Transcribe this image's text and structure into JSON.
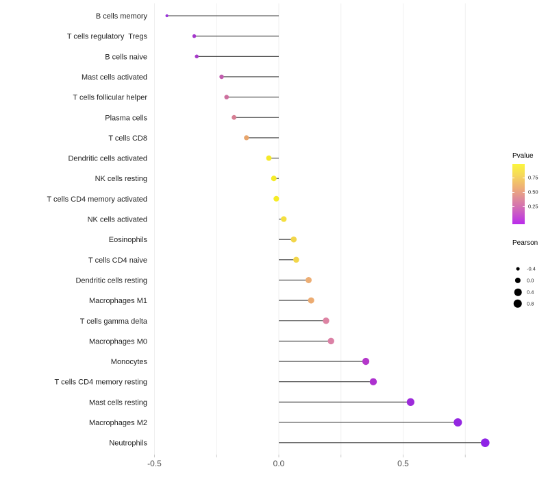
{
  "chart_data": {
    "type": "lollipop",
    "orientation": "horizontal",
    "title": "",
    "xlabel": "",
    "ylabel": "",
    "x_axis": {
      "range": [
        -0.51,
        0.88
      ],
      "major_tick_labels": [
        "-0.5",
        "0.0",
        "0.5"
      ],
      "major_ticks": [
        -0.5,
        0.0,
        0.5
      ],
      "gridlines": [
        -0.5,
        -0.25,
        0.0,
        0.25,
        0.5,
        0.75
      ],
      "baseline": 0.0
    },
    "size_scale": {
      "name": "Pearson",
      "domain": [
        -0.45,
        0.83
      ]
    },
    "color_scale": {
      "name": "Pvalue",
      "low_color": "#ba2bec",
      "high_color": "#fbf63c",
      "domain": [
        0,
        1
      ]
    },
    "points": [
      {
        "label": "B cells memory",
        "pearson": -0.45,
        "color": "#9a34d9"
      },
      {
        "label": "T cells regulatory  Tregs",
        "pearson": -0.34,
        "color": "#a437cc"
      },
      {
        "label": "B cells naive",
        "pearson": -0.33,
        "color": "#a73ac9"
      },
      {
        "label": "Mast cells activated",
        "pearson": -0.23,
        "color": "#c15cae"
      },
      {
        "label": "T cells follicular helper",
        "pearson": -0.21,
        "color": "#cd6f9e"
      },
      {
        "label": "Plasma cells",
        "pearson": -0.18,
        "color": "#d67e93"
      },
      {
        "label": "T cells CD8",
        "pearson": -0.13,
        "color": "#e8a56c"
      },
      {
        "label": "Dendritic cells activated",
        "pearson": -0.04,
        "color": "#f5e929"
      },
      {
        "label": "NK cells resting",
        "pearson": -0.02,
        "color": "#f5eb27"
      },
      {
        "label": "T cells CD4 memory activated",
        "pearson": -0.01,
        "color": "#f6ec26"
      },
      {
        "label": "NK cells activated",
        "pearson": 0.02,
        "color": "#f4df3f"
      },
      {
        "label": "Eosinophils",
        "pearson": 0.06,
        "color": "#f2d64a"
      },
      {
        "label": "T cells CD4 naive",
        "pearson": 0.07,
        "color": "#f2d64a"
      },
      {
        "label": "Dendritic cells resting",
        "pearson": 0.12,
        "color": "#edae74"
      },
      {
        "label": "Macrophages M1",
        "pearson": 0.13,
        "color": "#ecab71"
      },
      {
        "label": "T cells gamma delta",
        "pearson": 0.19,
        "color": "#dd83a3"
      },
      {
        "label": "Macrophages M0",
        "pearson": 0.21,
        "color": "#db81a6"
      },
      {
        "label": "Monocytes",
        "pearson": 0.35,
        "color": "#b437ca"
      },
      {
        "label": "T cells CD4 memory resting",
        "pearson": 0.38,
        "color": "#ad31cf"
      },
      {
        "label": "Mast cells resting",
        "pearson": 0.53,
        "color": "#9d2bda"
      },
      {
        "label": "Macrophages M2",
        "pearson": 0.72,
        "color": "#9427e1"
      },
      {
        "label": "Neutrophils",
        "pearson": 0.83,
        "color": "#8f24e6"
      }
    ]
  },
  "legend": {
    "pvalue": {
      "title": "Pvalue",
      "ticks": [
        {
          "label": "0.75",
          "frac_from_top": 0.23
        },
        {
          "label": "0.50",
          "frac_from_top": 0.47
        },
        {
          "label": "0.25",
          "frac_from_top": 0.71
        }
      ]
    },
    "pearson": {
      "title": "Pearson",
      "items": [
        {
          "label": "-0.4",
          "value": -0.4
        },
        {
          "label": "0.0",
          "value": 0.0
        },
        {
          "label": "0.4",
          "value": 0.4
        },
        {
          "label": "0.8",
          "value": 0.8
        }
      ]
    }
  }
}
